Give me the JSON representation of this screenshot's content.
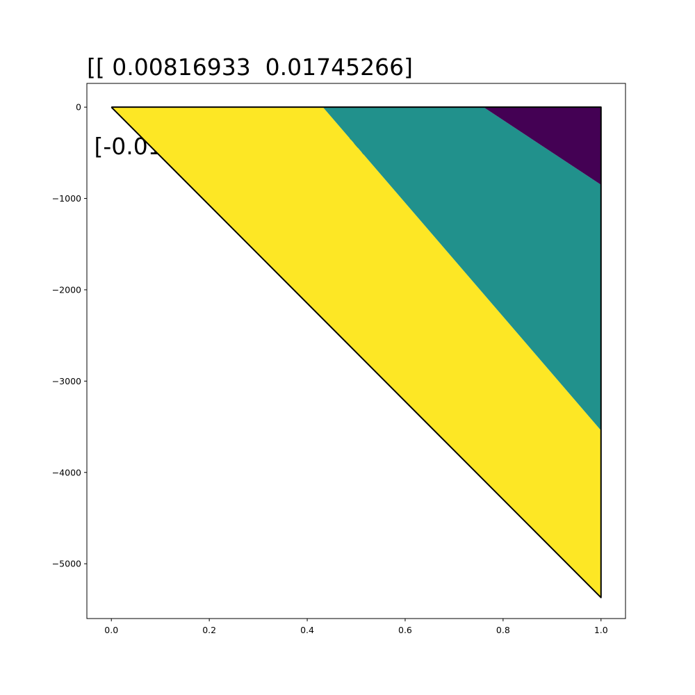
{
  "chart_data": {
    "type": "area",
    "title_lines": [
      "[[ 0.00816933  0.01745266]",
      " [-0.01745266  0.00816933]]"
    ],
    "xlabel": "",
    "ylabel": "",
    "xlim": [
      -0.05,
      1.05
    ],
    "ylim": [
      -5600,
      260
    ],
    "x_ticks": [
      0.0,
      0.2,
      0.4,
      0.6,
      0.8,
      1.0
    ],
    "x_tick_labels": [
      "0.0",
      "0.2",
      "0.4",
      "0.6",
      "0.8",
      "1.0"
    ],
    "y_ticks": [
      0,
      -1000,
      -2000,
      -3000,
      -4000,
      -5000
    ],
    "y_tick_labels": [
      "0",
      "−1000",
      "−2000",
      "−3000",
      "−4000",
      "−5000"
    ],
    "grid": false,
    "outline": {
      "color": "#000000",
      "points": [
        [
          0.0,
          0
        ],
        [
          1.0,
          0
        ],
        [
          1.0,
          -5370
        ],
        [
          0.0,
          0
        ]
      ]
    },
    "regions": [
      {
        "color": "#fde725",
        "points": [
          [
            0.0,
            0
          ],
          [
            0.432,
            0
          ],
          [
            1.0,
            -3540
          ],
          [
            1.0,
            -5370
          ]
        ]
      },
      {
        "color": "#21918c",
        "points": [
          [
            0.432,
            0
          ],
          [
            0.76,
            0
          ],
          [
            1.0,
            -850
          ],
          [
            1.0,
            -3540
          ]
        ]
      },
      {
        "color": "#440154",
        "points": [
          [
            0.76,
            0
          ],
          [
            1.0,
            0
          ],
          [
            1.0,
            -850
          ]
        ]
      }
    ]
  }
}
